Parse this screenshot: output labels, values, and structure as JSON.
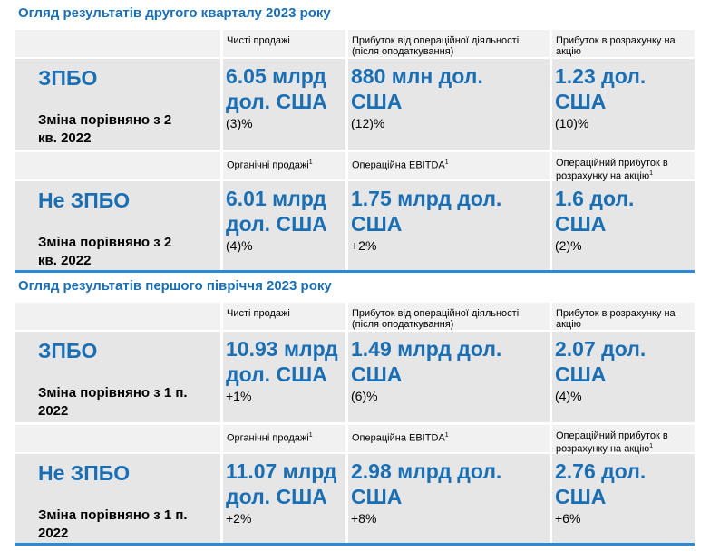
{
  "sections": [
    {
      "title": "Огляд результатів другого кварталу 2023 року",
      "blocks": [
        {
          "name": "ЗПБО",
          "change_label": "Зміна порівняно з 2 кв. 2022",
          "metrics": [
            {
              "label": "Чисті продажі",
              "value": "6.05 млрд дол. США",
              "change": "(3)%"
            },
            {
              "label": "Прибуток від операційної діяльності (після оподаткування)",
              "value": "880 млн дол. США",
              "change": "(12)%"
            },
            {
              "label": "Прибуток в розрахунку на акцію",
              "value": "1.23 дол. США",
              "change": "(10)%"
            }
          ]
        },
        {
          "name": "Не ЗПБО",
          "change_label": "Зміна порівняно з 2 кв. 2022",
          "metrics": [
            {
              "label": "Органічні продажі",
              "note": "1",
              "value": "6.01 млрд дол. США",
              "change": "(4)%"
            },
            {
              "label": "Операційна EBITDA",
              "note": "1",
              "value": "1.75 млрд дол. США",
              "change": "+2%"
            },
            {
              "label": "Операційний прибуток в розрахунку на акцію",
              "note": "1",
              "value": "1.6 дол. США",
              "change": "(2)%"
            }
          ]
        }
      ]
    },
    {
      "title": "Огляд результатів першого півріччя 2023 року",
      "blocks": [
        {
          "name": "ЗПБО",
          "change_label": "Зміна порівняно з 1 п. 2022",
          "metrics": [
            {
              "label": "Чисті продажі",
              "value": "10.93 млрд дол. США",
              "change": "+1%"
            },
            {
              "label": "Прибуток від операційної діяльності (після оподаткування)",
              "value": "1.49 млрд дол. США",
              "change": "(6)%"
            },
            {
              "label": "Прибуток в розрахунку на акцію",
              "value": "2.07 дол. США",
              "change": "(4)%"
            }
          ]
        },
        {
          "name": "Не ЗПБО",
          "change_label": "Зміна порівняно з 1 п. 2022",
          "metrics": [
            {
              "label": "Органічні продажі",
              "note": "1",
              "value": "11.07 млрд дол. США",
              "change": "+2%"
            },
            {
              "label": "Операційна EBITDA",
              "note": "1",
              "value": "2.98 млрд дол. США",
              "change": "+8%"
            },
            {
              "label": "Операційний прибуток в розрахунку на акцію",
              "note": "1",
              "value": "2.76 дол. США",
              "change": "+6%"
            }
          ]
        }
      ]
    }
  ]
}
